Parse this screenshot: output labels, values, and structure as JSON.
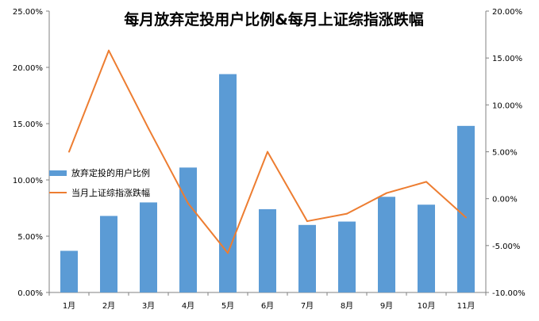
{
  "chart_data": {
    "type": "bar",
    "title": "每月放弃定投用户比例&每月上证综指涨跌幅",
    "categories": [
      "1月",
      "2月",
      "3月",
      "4月",
      "5月",
      "6月",
      "7月",
      "8月",
      "9月",
      "10月",
      "11月"
    ],
    "series": [
      {
        "name": "放弃定投的用户比例",
        "type": "bar",
        "axis": "left",
        "color": "#5B9BD5",
        "values": [
          3.7,
          6.8,
          8.0,
          11.1,
          19.4,
          7.4,
          6.0,
          6.3,
          8.5,
          7.8,
          14.8
        ]
      },
      {
        "name": "当月上证综指涨跌幅",
        "type": "line",
        "axis": "right",
        "color": "#ED7D31",
        "values": [
          5.0,
          15.8,
          7.5,
          -0.5,
          -5.8,
          5.0,
          -2.4,
          -1.6,
          0.6,
          1.8,
          -2.0
        ]
      }
    ],
    "y_left": {
      "min": 0,
      "max": 25,
      "step": 5,
      "tick_labels": [
        "0.00%",
        "5.00%",
        "10.00%",
        "15.00%",
        "20.00%",
        "25.00%"
      ]
    },
    "y_right": {
      "min": -10,
      "max": 20,
      "step": 5,
      "tick_labels": [
        "-10.00%",
        "-5.00%",
        "0.00%",
        "5.00%",
        "10.00%",
        "15.00%",
        "20.00%"
      ]
    },
    "grid": false,
    "legend_position": "left"
  }
}
